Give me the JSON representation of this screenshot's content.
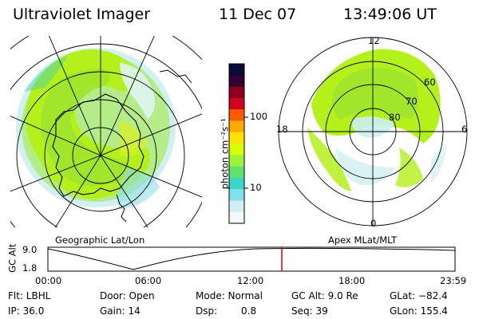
{
  "header": {
    "instrument": "Ultraviolet Imager",
    "date": "11 Dec 07",
    "time": "13:49:06 UT"
  },
  "left_panel": {
    "label": "Geographic Lat/Lon"
  },
  "right_panel": {
    "label": "Apex MLat/MLT",
    "mlt_labels": [
      "12",
      "18",
      "6",
      "0"
    ],
    "mlat_labels": [
      "60",
      "70",
      "80"
    ]
  },
  "colorbar": {
    "unit_label": "photon cm⁻²s⁻¹",
    "ticks": [
      "100",
      "10"
    ],
    "colors": [
      "#0a0a3a",
      "#330033",
      "#8b0022",
      "#d2001e",
      "#ff5a00",
      "#ffa800",
      "#ffe200",
      "#d7ff00",
      "#9cf23c",
      "#5fe36a",
      "#38d6c4",
      "#7fe0f0",
      "#cfeff4",
      "#f2f7f7"
    ]
  },
  "altitude_plot": {
    "ylabel": "GC Alt",
    "yticks": [
      "9.0",
      "1.8"
    ],
    "xticks": [
      "00:00",
      "06:00",
      "12:00",
      "18:00",
      "23:59"
    ],
    "current_time_marker": "13:49",
    "marker_color": "#d40000"
  },
  "footer": {
    "filter": "Flt: LBHL",
    "ip": "IP: 36.0",
    "door": "Door: Open",
    "gain": "Gain: 14",
    "mode": "Mode: Normal",
    "dsp": "Dsp:",
    "dsp_value": "0.8",
    "gc_alt": "GC Alt: 9.0 Re",
    "seq": "Seq: 39",
    "glat": "GLat: −82.4",
    "glon": "GLon: 155.4"
  }
}
